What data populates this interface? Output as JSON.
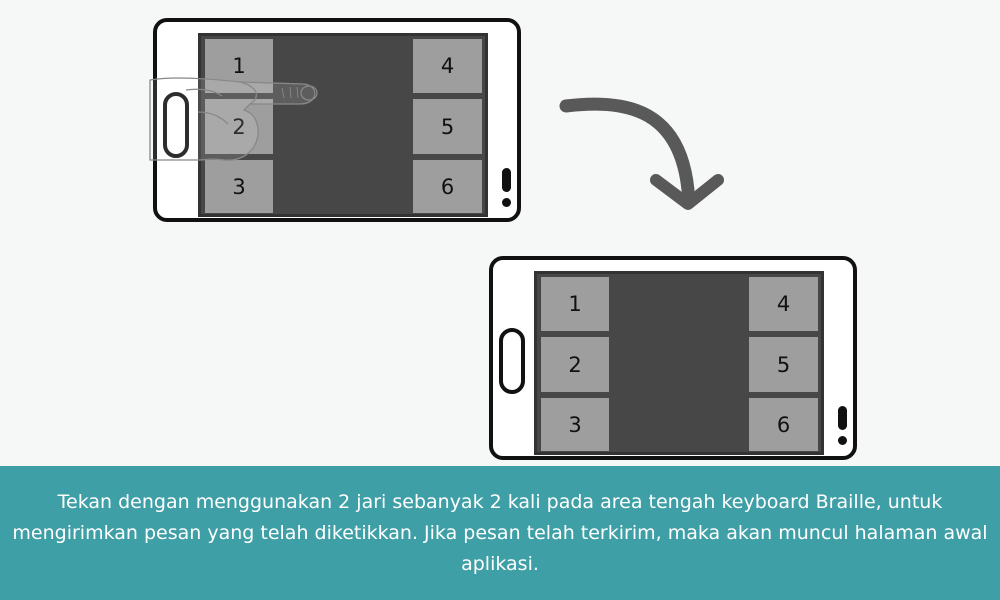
{
  "phone_before": {
    "keys": [
      "1",
      "2",
      "3",
      "4",
      "5",
      "6"
    ]
  },
  "phone_after": {
    "keys": [
      "1",
      "2",
      "3",
      "4",
      "5",
      "6"
    ]
  },
  "caption": {
    "text": "Tekan dengan menggunakan 2 jari sebanyak 2 kali pada area tengah keyboard Braille, untuk mengirimkan pesan yang telah diketikkan. Jika pesan telah terkirim, maka akan muncul halaman awal aplikasi."
  },
  "colors": {
    "background": "#f6f8f7",
    "screen": "#474747",
    "key": "#9e9e9e",
    "caption_bar": "#3f9fa6",
    "arrow": "#595959"
  },
  "icons": [
    "hand-pointer-icon",
    "curved-arrow-icon"
  ]
}
